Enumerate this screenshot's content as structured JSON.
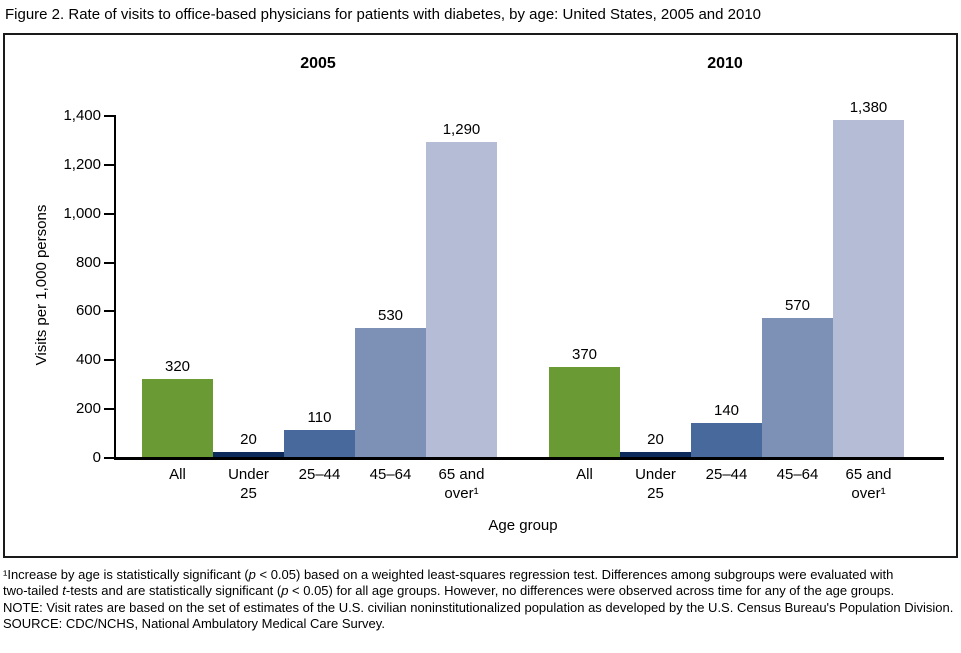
{
  "title": "Figure 2. Rate of visits to office-based physicians for patients with diabetes, by age: United States, 2005 and 2010",
  "chart_data": {
    "type": "bar",
    "title": "Figure 2. Rate of visits to office-based physicians for patients with diabetes, by age: United States, 2005 and 2010",
    "xlabel": "Age group",
    "ylabel": "Visits per 1,000 persons",
    "ylim": [
      0,
      1400
    ],
    "ytick_step": 200,
    "ytick_labels": [
      "0",
      "200",
      "400",
      "600",
      "800",
      "1,000",
      "1,200",
      "1,400"
    ],
    "grid": false,
    "legend": "none",
    "categories": [
      "All",
      "Under\n25",
      "25–44",
      "45–64",
      "65 and\nover¹"
    ],
    "bar_colors": [
      "#6A9A34",
      "#0C2B5B",
      "#48699C",
      "#7D90B5",
      "#B4BCD6"
    ],
    "groups": [
      {
        "label": "2005",
        "values": [
          320,
          20,
          110,
          530,
          1290
        ],
        "value_labels": [
          "320",
          "20",
          "110",
          "530",
          "1,290"
        ]
      },
      {
        "label": "2010",
        "values": [
          370,
          20,
          140,
          570,
          1380
        ],
        "value_labels": [
          "370",
          "20",
          "140",
          "570",
          "1,380"
        ]
      }
    ]
  },
  "footnotes": {
    "lines": [
      {
        "segments": [
          {
            "t": "¹Increase by age is statistically significant ("
          },
          {
            "t": "p",
            "i": true
          },
          {
            "t": " < 0.05) based on a weighted least-squares regression test. Differences among subgroups were evaluated with"
          }
        ]
      },
      {
        "segments": [
          {
            "t": "two-tailed "
          },
          {
            "t": "t",
            "i": true
          },
          {
            "t": "-tests and are statistically significant ("
          },
          {
            "t": "p",
            "i": true
          },
          {
            "t": " < 0.05) for all age groups. However, no differences were observed across time for any of the age groups."
          }
        ]
      },
      {
        "segments": [
          {
            "t": "NOTE: Visit rates are based on the set of estimates of the U.S. civilian noninstitutionalized population as developed by the U.S. Census Bureau's Population Division."
          }
        ]
      },
      {
        "segments": [
          {
            "t": "SOURCE: CDC/NCHS, National Ambulatory Medical Care Survey."
          }
        ]
      }
    ]
  }
}
